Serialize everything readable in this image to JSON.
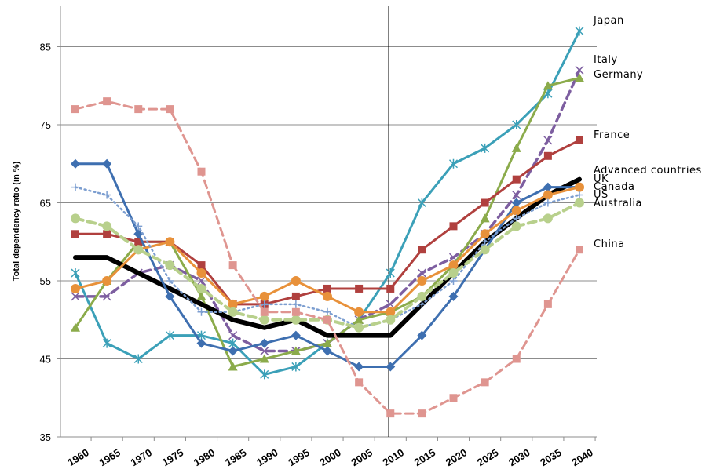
{
  "chart_data": {
    "type": "line",
    "ylabel": "Total dependency ratio (in %)",
    "xlabel": "",
    "ylim": [
      35,
      90
    ],
    "yticks": [
      35,
      45,
      55,
      65,
      75,
      85
    ],
    "x": [
      "1960",
      "1965",
      "1970",
      "1975",
      "1980",
      "1985",
      "1990",
      "1995",
      "2000",
      "2005",
      "2010",
      "2015",
      "2020",
      "2025",
      "2030",
      "2035",
      "2040"
    ],
    "vline": "2010",
    "grid": "horizontal",
    "legend": "inline labels at right end",
    "series": [
      {
        "name": "Japan",
        "color": "#3ba0b8",
        "dash": "solid",
        "marker": "star",
        "width": 3,
        "values": [
          56,
          47,
          45,
          48,
          48,
          47,
          43,
          44,
          47,
          50,
          56,
          65,
          70,
          72,
          75,
          79,
          87
        ]
      },
      {
        "name": "Italy",
        "color": "#7d5ea0",
        "dash": "dash",
        "marker": "x",
        "width": 3.5,
        "values": [
          53,
          53,
          56,
          57,
          55,
          48,
          46,
          46,
          47,
          50,
          52,
          56,
          58,
          61,
          66,
          73,
          82
        ]
      },
      {
        "name": "Germany",
        "color": "#8bab4b",
        "dash": "solid",
        "marker": "triangle",
        "width": 3,
        "values": [
          49,
          55,
          60,
          60,
          53,
          44,
          45,
          46,
          47,
          50,
          51,
          53,
          57,
          63,
          72,
          80,
          81
        ]
      },
      {
        "name": "France",
        "color": "#b0403e",
        "dash": "solid",
        "marker": "square",
        "width": 3,
        "values": [
          61,
          61,
          60,
          60,
          57,
          52,
          52,
          53,
          54,
          54,
          54,
          59,
          62,
          65,
          68,
          71,
          73
        ]
      },
      {
        "name": "Advanced countries",
        "color": "#000000",
        "dash": "solid",
        "marker": "none",
        "width": 6,
        "values": [
          58,
          58,
          56,
          54,
          52,
          50,
          49,
          50,
          48,
          48,
          48,
          52,
          56,
          60,
          63,
          66,
          68
        ]
      },
      {
        "name": "UK",
        "color": "#3e6fb0",
        "dash": "solid",
        "marker": "diamond",
        "width": 3,
        "values": [
          70,
          70,
          61,
          53,
          47,
          46,
          47,
          48,
          46,
          44,
          44,
          48,
          53,
          59,
          65,
          67,
          67
        ]
      },
      {
        "name": "Canada",
        "color": "#e8913a",
        "dash": "solid",
        "marker": "circle",
        "width": 3,
        "values": [
          54,
          55,
          59,
          60,
          56,
          52,
          53,
          55,
          53,
          51,
          51,
          55,
          57,
          61,
          64,
          66,
          67
        ]
      },
      {
        "name": "US",
        "color": "#7c9ed0",
        "dash": "dot",
        "marker": "plus",
        "width": 2.5,
        "values": [
          67,
          66,
          62,
          55,
          51,
          51,
          52,
          52,
          51,
          49,
          50,
          52,
          55,
          60,
          63,
          65,
          66
        ]
      },
      {
        "name": "Australia",
        "color": "#b8d08c",
        "dash": "dash",
        "marker": "circle",
        "width": 4,
        "values": [
          63,
          62,
          59,
          57,
          54,
          51,
          50,
          50,
          50,
          49,
          50,
          53,
          56,
          59,
          62,
          63,
          65
        ]
      },
      {
        "name": "China",
        "color": "#df9590",
        "dash": "dash",
        "marker": "square",
        "width": 3,
        "values": [
          77,
          78,
          77,
          77,
          69,
          57,
          51,
          51,
          50,
          42,
          38,
          38,
          40,
          42,
          45,
          52,
          59
        ]
      }
    ]
  }
}
